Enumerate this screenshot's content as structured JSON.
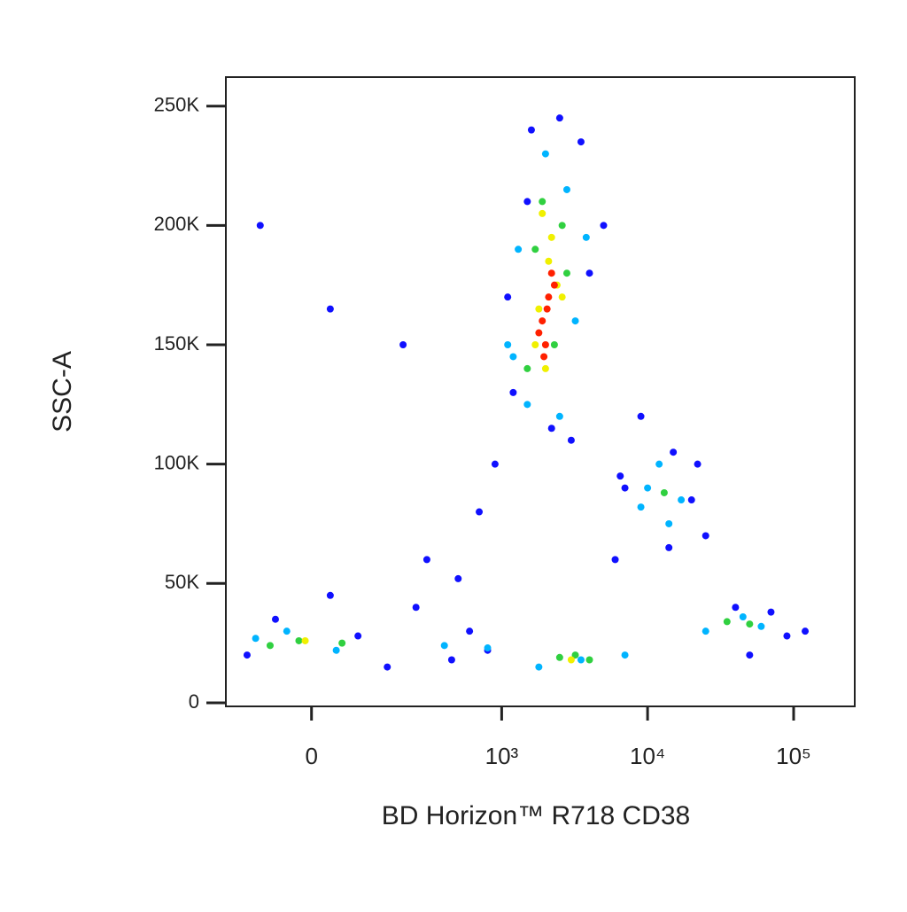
{
  "chart_data": {
    "type": "scatter",
    "xlabel": "BD Horizon™ R718 CD38",
    "ylabel": "SSC-A",
    "xscale": "biexponential",
    "xlim": [
      -180,
      262144
    ],
    "ylim": [
      -1500,
      262144
    ],
    "xticks": [
      0,
      {
        "value": 1000,
        "label": "10³"
      },
      {
        "value": 10000,
        "label": "10⁴"
      },
      {
        "value": 100000,
        "label": "10⁵"
      }
    ],
    "yticks": [
      0,
      {
        "value": 50000,
        "label": "50K"
      },
      {
        "value": 100000,
        "label": "100K"
      },
      {
        "value": 150000,
        "label": "150K"
      },
      {
        "value": 200000,
        "label": "200K"
      },
      {
        "value": 250000,
        "label": "250K"
      }
    ],
    "series": [
      {
        "color": "#1010ff",
        "x": [
          -120,
          -60,
          30,
          80,
          150,
          300,
          500,
          700,
          900,
          1200,
          1600,
          2500,
          3500,
          5000,
          7000,
          9000,
          15000,
          25000,
          40000,
          70000,
          120000,
          -90,
          200,
          600,
          1100,
          3000,
          6000,
          20000,
          50000,
          800,
          1500,
          4000,
          6500,
          14000,
          22000,
          250,
          450,
          30,
          2200,
          90000
        ],
        "y": [
          20000,
          35000,
          45000,
          28000,
          15000,
          60000,
          52000,
          80000,
          100000,
          130000,
          240000,
          245000,
          235000,
          200000,
          90000,
          120000,
          105000,
          70000,
          40000,
          38000,
          30000,
          200000,
          150000,
          30000,
          170000,
          110000,
          60000,
          85000,
          20000,
          22000,
          210000,
          180000,
          95000,
          65000,
          100000,
          40000,
          18000,
          165000,
          115000,
          28000
        ]
      },
      {
        "color": "#00b4ff",
        "x": [
          1300,
          2800,
          1500,
          3200,
          2000,
          1100,
          2500,
          10000,
          14000,
          12000,
          17000,
          -40,
          40,
          -100,
          400,
          1800,
          3500,
          7000,
          25000,
          45000,
          60000,
          1200,
          3800,
          9000,
          800
        ],
        "y": [
          190000,
          215000,
          125000,
          160000,
          230000,
          150000,
          120000,
          90000,
          75000,
          100000,
          85000,
          30000,
          22000,
          27000,
          24000,
          15000,
          18000,
          20000,
          30000,
          36000,
          32000,
          145000,
          195000,
          82000,
          23000
        ]
      },
      {
        "color": "#30d040",
        "x": [
          1500,
          1700,
          2600,
          2300,
          1900,
          2800,
          -20,
          50,
          -70,
          2500,
          4000,
          3200,
          35000,
          50000,
          13000
        ],
        "y": [
          140000,
          190000,
          200000,
          150000,
          210000,
          180000,
          26000,
          25000,
          24000,
          19000,
          18000,
          20000,
          34000,
          33000,
          88000
        ]
      },
      {
        "color": "#f0f000",
        "x": [
          1800,
          2100,
          2400,
          1700,
          2200,
          2000,
          2600,
          1900,
          3000,
          -10
        ],
        "y": [
          165000,
          185000,
          175000,
          150000,
          195000,
          140000,
          170000,
          205000,
          18000,
          26000
        ]
      },
      {
        "color": "#ff2000",
        "x": [
          1900,
          2100,
          2000,
          1800,
          2200,
          2300,
          1950,
          2050
        ],
        "y": [
          160000,
          170000,
          150000,
          155000,
          180000,
          175000,
          145000,
          165000
        ]
      }
    ]
  }
}
